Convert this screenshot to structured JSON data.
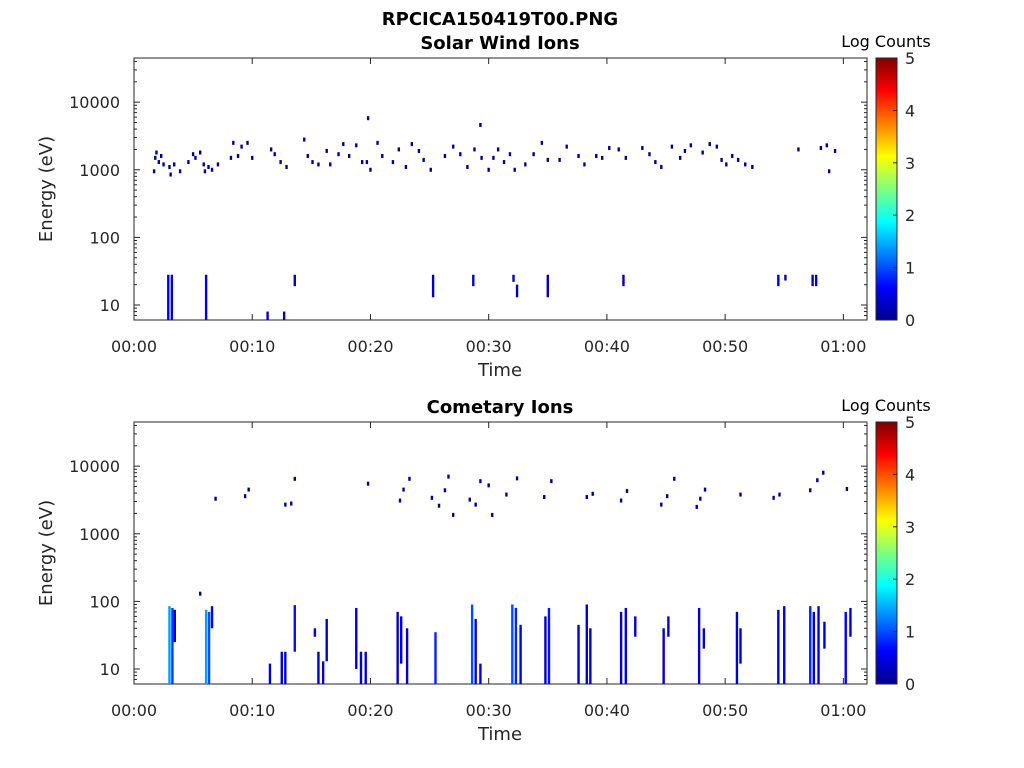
{
  "figure_title": "RPCICA150419T00.PNG",
  "chart_data": [
    {
      "type": "heatmap",
      "title": "Solar Wind Ions",
      "xlabel": "Time",
      "ylabel": "Energy (eV)",
      "y_scale": "log",
      "ylim": [
        6,
        45000
      ],
      "xlim": [
        0,
        62
      ],
      "x_ticks": [
        "00:00",
        "00:10",
        "00:20",
        "00:30",
        "00:40",
        "00:50",
        "01:00"
      ],
      "y_ticks": [
        "10",
        "100",
        "1000",
        "10000"
      ],
      "colorbar": {
        "label": "Log Counts",
        "range": [
          0,
          5
        ],
        "ticks": [
          "0",
          "1",
          "2",
          "3",
          "4",
          "5"
        ],
        "colormap": "jet"
      },
      "value_unit_x": "minutes after 00:00",
      "mark_color": "#00008f",
      "streaks": [
        {
          "t": 2.9,
          "e0": 6,
          "e1": 28,
          "v": 0.4
        },
        {
          "t": 3.2,
          "e0": 6,
          "e1": 28,
          "v": 0.4
        },
        {
          "t": 6.1,
          "e0": 6,
          "e1": 28,
          "v": 0.4
        },
        {
          "t": 11.3,
          "e0": 6,
          "e1": 8,
          "v": 0.3
        },
        {
          "t": 12.7,
          "e0": 6,
          "e1": 8,
          "v": 0.3
        },
        {
          "t": 13.6,
          "e0": 19,
          "e1": 28,
          "v": 0.3
        },
        {
          "t": 25.3,
          "e0": 13,
          "e1": 28,
          "v": 0.3
        },
        {
          "t": 28.7,
          "e0": 19,
          "e1": 28,
          "v": 0.3
        },
        {
          "t": 32.1,
          "e0": 22,
          "e1": 28,
          "v": 0.3
        },
        {
          "t": 32.4,
          "e0": 13,
          "e1": 20,
          "v": 0.3
        },
        {
          "t": 35.0,
          "e0": 13,
          "e1": 28,
          "v": 0.3
        },
        {
          "t": 41.4,
          "e0": 19,
          "e1": 28,
          "v": 0.3
        },
        {
          "t": 54.5,
          "e0": 19,
          "e1": 28,
          "v": 0.3
        },
        {
          "t": 55.1,
          "e0": 23,
          "e1": 28,
          "v": 0.3
        },
        {
          "t": 57.4,
          "e0": 19,
          "e1": 28,
          "v": 0.3
        },
        {
          "t": 57.7,
          "e0": 19,
          "e1": 28,
          "v": 0.3
        }
      ],
      "dots": [
        {
          "t": 1.7,
          "e": 950
        },
        {
          "t": 1.8,
          "e": 1500
        },
        {
          "t": 1.9,
          "e": 1800
        },
        {
          "t": 2.1,
          "e": 1300
        },
        {
          "t": 2.3,
          "e": 1600
        },
        {
          "t": 2.5,
          "e": 1200
        },
        {
          "t": 3.0,
          "e": 1100
        },
        {
          "t": 3.1,
          "e": 850
        },
        {
          "t": 3.4,
          "e": 1200
        },
        {
          "t": 3.9,
          "e": 950
        },
        {
          "t": 4.6,
          "e": 1300
        },
        {
          "t": 5.0,
          "e": 1700
        },
        {
          "t": 5.2,
          "e": 1500
        },
        {
          "t": 5.6,
          "e": 1800
        },
        {
          "t": 5.9,
          "e": 1200
        },
        {
          "t": 6.0,
          "e": 950
        },
        {
          "t": 6.3,
          "e": 1100
        },
        {
          "t": 6.6,
          "e": 1000
        },
        {
          "t": 7.1,
          "e": 1200
        },
        {
          "t": 8.2,
          "e": 1500
        },
        {
          "t": 8.4,
          "e": 2500
        },
        {
          "t": 8.8,
          "e": 1600
        },
        {
          "t": 9.1,
          "e": 2200
        },
        {
          "t": 9.6,
          "e": 2500
        },
        {
          "t": 10.0,
          "e": 1500
        },
        {
          "t": 11.6,
          "e": 2000
        },
        {
          "t": 11.9,
          "e": 1700
        },
        {
          "t": 12.4,
          "e": 1300
        },
        {
          "t": 12.9,
          "e": 1100
        },
        {
          "t": 14.4,
          "e": 2800
        },
        {
          "t": 14.7,
          "e": 1600
        },
        {
          "t": 15.1,
          "e": 1300
        },
        {
          "t": 15.6,
          "e": 1200
        },
        {
          "t": 16.3,
          "e": 1900
        },
        {
          "t": 16.6,
          "e": 1200
        },
        {
          "t": 17.3,
          "e": 1700
        },
        {
          "t": 17.7,
          "e": 2400
        },
        {
          "t": 18.2,
          "e": 1600
        },
        {
          "t": 18.8,
          "e": 2300
        },
        {
          "t": 19.3,
          "e": 1300
        },
        {
          "t": 19.7,
          "e": 1300
        },
        {
          "t": 20.0,
          "e": 1000
        },
        {
          "t": 20.6,
          "e": 2500
        },
        {
          "t": 21.0,
          "e": 1600
        },
        {
          "t": 21.9,
          "e": 1300
        },
        {
          "t": 22.4,
          "e": 2000
        },
        {
          "t": 23.0,
          "e": 1100
        },
        {
          "t": 23.5,
          "e": 2400
        },
        {
          "t": 24.1,
          "e": 1900
        },
        {
          "t": 24.5,
          "e": 1400
        },
        {
          "t": 25.1,
          "e": 1000
        },
        {
          "t": 26.3,
          "e": 1600
        },
        {
          "t": 27.0,
          "e": 2200
        },
        {
          "t": 27.6,
          "e": 1700
        },
        {
          "t": 28.2,
          "e": 1100
        },
        {
          "t": 28.8,
          "e": 2000
        },
        {
          "t": 29.4,
          "e": 1500
        },
        {
          "t": 30.0,
          "e": 1000
        },
        {
          "t": 30.4,
          "e": 1500
        },
        {
          "t": 30.8,
          "e": 2000
        },
        {
          "t": 31.3,
          "e": 1300
        },
        {
          "t": 31.8,
          "e": 1700
        },
        {
          "t": 32.2,
          "e": 1000
        },
        {
          "t": 33.1,
          "e": 1200
        },
        {
          "t": 33.8,
          "e": 1700
        },
        {
          "t": 34.5,
          "e": 2500
        },
        {
          "t": 35.0,
          "e": 1400
        },
        {
          "t": 36.0,
          "e": 1400
        },
        {
          "t": 36.6,
          "e": 2200
        },
        {
          "t": 37.6,
          "e": 1600
        },
        {
          "t": 38.1,
          "e": 1200
        },
        {
          "t": 39.1,
          "e": 1600
        },
        {
          "t": 39.6,
          "e": 1500
        },
        {
          "t": 40.2,
          "e": 2100
        },
        {
          "t": 41.0,
          "e": 2000
        },
        {
          "t": 41.6,
          "e": 1500
        },
        {
          "t": 43.0,
          "e": 2100
        },
        {
          "t": 43.6,
          "e": 1700
        },
        {
          "t": 44.1,
          "e": 1300
        },
        {
          "t": 44.6,
          "e": 1100
        },
        {
          "t": 45.5,
          "e": 2200
        },
        {
          "t": 46.2,
          "e": 1500
        },
        {
          "t": 46.6,
          "e": 1900
        },
        {
          "t": 47.1,
          "e": 2300
        },
        {
          "t": 48.1,
          "e": 1800
        },
        {
          "t": 48.7,
          "e": 2400
        },
        {
          "t": 49.3,
          "e": 2200
        },
        {
          "t": 49.7,
          "e": 1400
        },
        {
          "t": 50.1,
          "e": 1200
        },
        {
          "t": 50.6,
          "e": 1600
        },
        {
          "t": 51.1,
          "e": 1400
        },
        {
          "t": 51.7,
          "e": 1200
        },
        {
          "t": 52.3,
          "e": 1100
        },
        {
          "t": 56.2,
          "e": 2000
        },
        {
          "t": 58.1,
          "e": 2100
        },
        {
          "t": 58.6,
          "e": 2300
        },
        {
          "t": 58.8,
          "e": 950
        },
        {
          "t": 59.3,
          "e": 1900
        },
        {
          "t": 19.8,
          "e": 5800
        },
        {
          "t": 29.3,
          "e": 4600
        }
      ]
    },
    {
      "type": "heatmap",
      "title": "Cometary Ions",
      "xlabel": "Time",
      "ylabel": "Energy (eV)",
      "y_scale": "log",
      "ylim": [
        6,
        45000
      ],
      "xlim": [
        0,
        62
      ],
      "x_ticks": [
        "00:00",
        "00:10",
        "00:20",
        "00:30",
        "00:40",
        "00:50",
        "01:00"
      ],
      "y_ticks": [
        "10",
        "100",
        "1000",
        "10000"
      ],
      "colorbar": {
        "label": "Log Counts",
        "range": [
          0,
          5
        ],
        "ticks": [
          "0",
          "1",
          "2",
          "3",
          "4",
          "5"
        ],
        "colormap": "jet"
      },
      "value_unit_x": "minutes after 00:00",
      "mark_color": "#00008f",
      "streaks": [
        {
          "t": 3.0,
          "e0": 6,
          "e1": 85,
          "v": 1.4
        },
        {
          "t": 3.25,
          "e0": 6,
          "e1": 80,
          "v": 0.9
        },
        {
          "t": 3.45,
          "e0": 25,
          "e1": 75,
          "v": 0.5
        },
        {
          "t": 6.1,
          "e0": 6,
          "e1": 75,
          "v": 1.4
        },
        {
          "t": 6.35,
          "e0": 6,
          "e1": 70,
          "v": 1.0
        },
        {
          "t": 6.6,
          "e0": 40,
          "e1": 85,
          "v": 0.6
        },
        {
          "t": 11.5,
          "e0": 6,
          "e1": 12,
          "v": 0.4
        },
        {
          "t": 12.5,
          "e0": 6,
          "e1": 18,
          "v": 0.4
        },
        {
          "t": 12.8,
          "e0": 6,
          "e1": 18,
          "v": 0.4
        },
        {
          "t": 13.6,
          "e0": 18,
          "e1": 88,
          "v": 0.7
        },
        {
          "t": 15.3,
          "e0": 30,
          "e1": 40,
          "v": 0.4
        },
        {
          "t": 15.6,
          "e0": 6,
          "e1": 18,
          "v": 0.4
        },
        {
          "t": 16.0,
          "e0": 6,
          "e1": 13,
          "v": 0.4
        },
        {
          "t": 16.3,
          "e0": 13,
          "e1": 55,
          "v": 0.4
        },
        {
          "t": 18.8,
          "e0": 10,
          "e1": 80,
          "v": 0.4
        },
        {
          "t": 19.2,
          "e0": 6,
          "e1": 18,
          "v": 0.4
        },
        {
          "t": 19.6,
          "e0": 6,
          "e1": 18,
          "v": 0.4
        },
        {
          "t": 22.3,
          "e0": 6,
          "e1": 70,
          "v": 0.4
        },
        {
          "t": 22.6,
          "e0": 12,
          "e1": 60,
          "v": 0.4
        },
        {
          "t": 23.1,
          "e0": 6,
          "e1": 40,
          "v": 0.4
        },
        {
          "t": 25.5,
          "e0": 6,
          "e1": 35,
          "v": 0.8
        },
        {
          "t": 28.6,
          "e0": 6,
          "e1": 90,
          "v": 1.0
        },
        {
          "t": 28.9,
          "e0": 6,
          "e1": 55,
          "v": 0.5
        },
        {
          "t": 29.3,
          "e0": 6,
          "e1": 12,
          "v": 0.5
        },
        {
          "t": 32.0,
          "e0": 6,
          "e1": 90,
          "v": 1.0
        },
        {
          "t": 32.3,
          "e0": 6,
          "e1": 80,
          "v": 0.8
        },
        {
          "t": 32.7,
          "e0": 6,
          "e1": 45,
          "v": 0.5
        },
        {
          "t": 34.8,
          "e0": 6,
          "e1": 60,
          "v": 0.4
        },
        {
          "t": 35.1,
          "e0": 6,
          "e1": 80,
          "v": 0.7
        },
        {
          "t": 37.6,
          "e0": 6,
          "e1": 45,
          "v": 0.4
        },
        {
          "t": 38.3,
          "e0": 6,
          "e1": 90,
          "v": 0.4
        },
        {
          "t": 38.6,
          "e0": 6,
          "e1": 40,
          "v": 0.4
        },
        {
          "t": 41.2,
          "e0": 6,
          "e1": 70,
          "v": 0.4
        },
        {
          "t": 41.6,
          "e0": 6,
          "e1": 80,
          "v": 0.4
        },
        {
          "t": 42.4,
          "e0": 30,
          "e1": 60,
          "v": 0.4
        },
        {
          "t": 44.8,
          "e0": 6,
          "e1": 40,
          "v": 0.4
        },
        {
          "t": 45.2,
          "e0": 30,
          "e1": 60,
          "v": 0.4
        },
        {
          "t": 47.8,
          "e0": 6,
          "e1": 80,
          "v": 0.4
        },
        {
          "t": 48.2,
          "e0": 20,
          "e1": 40,
          "v": 0.4
        },
        {
          "t": 51.0,
          "e0": 6,
          "e1": 70,
          "v": 0.4
        },
        {
          "t": 51.3,
          "e0": 12,
          "e1": 40,
          "v": 0.4
        },
        {
          "t": 54.5,
          "e0": 6,
          "e1": 75,
          "v": 0.4
        },
        {
          "t": 55.0,
          "e0": 6,
          "e1": 85,
          "v": 0.4
        },
        {
          "t": 57.2,
          "e0": 6,
          "e1": 85,
          "v": 0.8
        },
        {
          "t": 57.5,
          "e0": 6,
          "e1": 70,
          "v": 0.5
        },
        {
          "t": 57.9,
          "e0": 6,
          "e1": 85,
          "v": 0.5
        },
        {
          "t": 58.4,
          "e0": 20,
          "e1": 50,
          "v": 0.4
        },
        {
          "t": 60.2,
          "e0": 6,
          "e1": 70,
          "v": 0.6
        },
        {
          "t": 60.6,
          "e0": 30,
          "e1": 80,
          "v": 0.4
        }
      ],
      "dots": [
        {
          "t": 5.6,
          "e": 130
        },
        {
          "t": 6.9,
          "e": 3300
        },
        {
          "t": 9.4,
          "e": 3600
        },
        {
          "t": 9.7,
          "e": 4500
        },
        {
          "t": 12.8,
          "e": 2700
        },
        {
          "t": 13.3,
          "e": 2800
        },
        {
          "t": 13.6,
          "e": 6500
        },
        {
          "t": 19.8,
          "e": 5500
        },
        {
          "t": 22.5,
          "e": 3100
        },
        {
          "t": 22.8,
          "e": 4500
        },
        {
          "t": 23.3,
          "e": 6500
        },
        {
          "t": 25.8,
          "e": 2600
        },
        {
          "t": 26.3,
          "e": 4400
        },
        {
          "t": 26.6,
          "e": 7000
        },
        {
          "t": 27.0,
          "e": 1900
        },
        {
          "t": 28.4,
          "e": 3200
        },
        {
          "t": 28.9,
          "e": 2700
        },
        {
          "t": 29.3,
          "e": 6000
        },
        {
          "t": 30.3,
          "e": 1900
        },
        {
          "t": 31.5,
          "e": 3800
        },
        {
          "t": 32.4,
          "e": 6600
        },
        {
          "t": 34.7,
          "e": 3500
        },
        {
          "t": 35.3,
          "e": 6000
        },
        {
          "t": 38.3,
          "e": 3500
        },
        {
          "t": 38.8,
          "e": 3900
        },
        {
          "t": 41.2,
          "e": 3100
        },
        {
          "t": 41.7,
          "e": 4300
        },
        {
          "t": 44.6,
          "e": 2700
        },
        {
          "t": 45.1,
          "e": 3600
        },
        {
          "t": 45.7,
          "e": 6500
        },
        {
          "t": 47.6,
          "e": 2500
        },
        {
          "t": 47.9,
          "e": 3300
        },
        {
          "t": 48.3,
          "e": 4500
        },
        {
          "t": 51.3,
          "e": 3800
        },
        {
          "t": 54.1,
          "e": 3400
        },
        {
          "t": 54.6,
          "e": 3800
        },
        {
          "t": 57.2,
          "e": 4400
        },
        {
          "t": 57.8,
          "e": 6200
        },
        {
          "t": 58.3,
          "e": 8000
        },
        {
          "t": 60.3,
          "e": 4600
        },
        {
          "t": 30.0,
          "e": 5200
        },
        {
          "t": 25.2,
          "e": 3400
        }
      ]
    }
  ]
}
